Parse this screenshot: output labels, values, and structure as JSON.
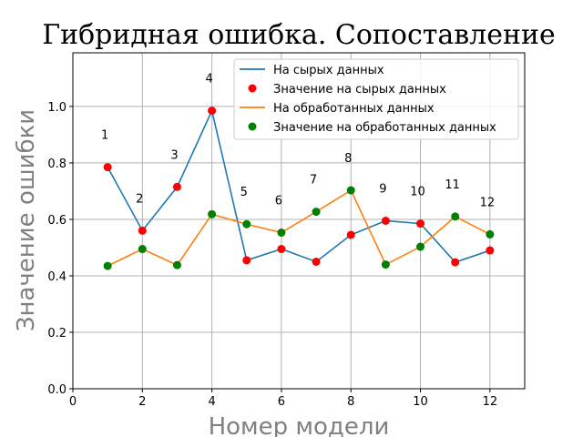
{
  "chart_data": {
    "type": "line",
    "title": "Гибридная ошибка. Сопоставление",
    "xlabel": "Номер модели",
    "ylabel": "Значение ошибки",
    "xlim": [
      0,
      13
    ],
    "ylim": [
      0,
      1.19
    ],
    "xticks": [
      0,
      2,
      4,
      6,
      8,
      10,
      12
    ],
    "yticks": [
      0.0,
      0.2,
      0.4,
      0.6,
      0.8,
      1.0
    ],
    "grid": true,
    "legend_position": "top-right",
    "x": [
      1,
      2,
      3,
      4,
      5,
      6,
      7,
      8,
      9,
      10,
      11,
      12
    ],
    "point_labels": [
      "1",
      "2",
      "3",
      "4",
      "5",
      "6",
      "7",
      "8",
      "9",
      "10",
      "11",
      "12"
    ],
    "series": [
      {
        "name": "На сырых данных",
        "marker_name": "Значение на сырых данных",
        "line_color": "#1f77b4",
        "marker_color": "#ff0000",
        "values": [
          0.785,
          0.56,
          0.715,
          0.985,
          0.455,
          0.495,
          0.45,
          0.545,
          0.595,
          0.585,
          0.448,
          0.49
        ]
      },
      {
        "name": "На обработанных данных",
        "marker_name": "Значение на обработанных данных",
        "line_color": "#ff7f0e",
        "marker_color": "#008000",
        "values": [
          0.435,
          0.495,
          0.438,
          0.618,
          0.583,
          0.553,
          0.627,
          0.703,
          0.44,
          0.503,
          0.61,
          0.547
        ]
      }
    ]
  }
}
